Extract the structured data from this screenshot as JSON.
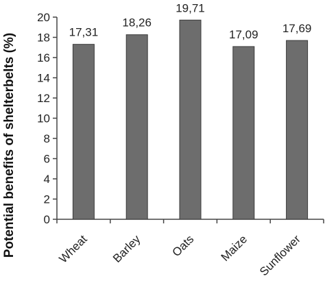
{
  "chart_data": {
    "type": "bar",
    "categories": [
      "Wheat",
      "Barley",
      "Oats",
      "Maize",
      "Sunflower"
    ],
    "values": [
      17.31,
      18.26,
      19.71,
      17.09,
      17.69
    ],
    "data_labels": [
      "17,31",
      "18,26",
      "19,71",
      "17,09",
      "17,69"
    ],
    "ylabel": "Potential benefits of shelterbelts (%)",
    "xlabel": "",
    "title": "",
    "ylim": [
      0,
      20
    ],
    "yticks": [
      0,
      2,
      4,
      6,
      8,
      10,
      12,
      14,
      16,
      18,
      20
    ],
    "grid": false,
    "legend": "none",
    "bar_color": "#6d6d6d",
    "bar_edge_color": "#3a3a3a"
  }
}
